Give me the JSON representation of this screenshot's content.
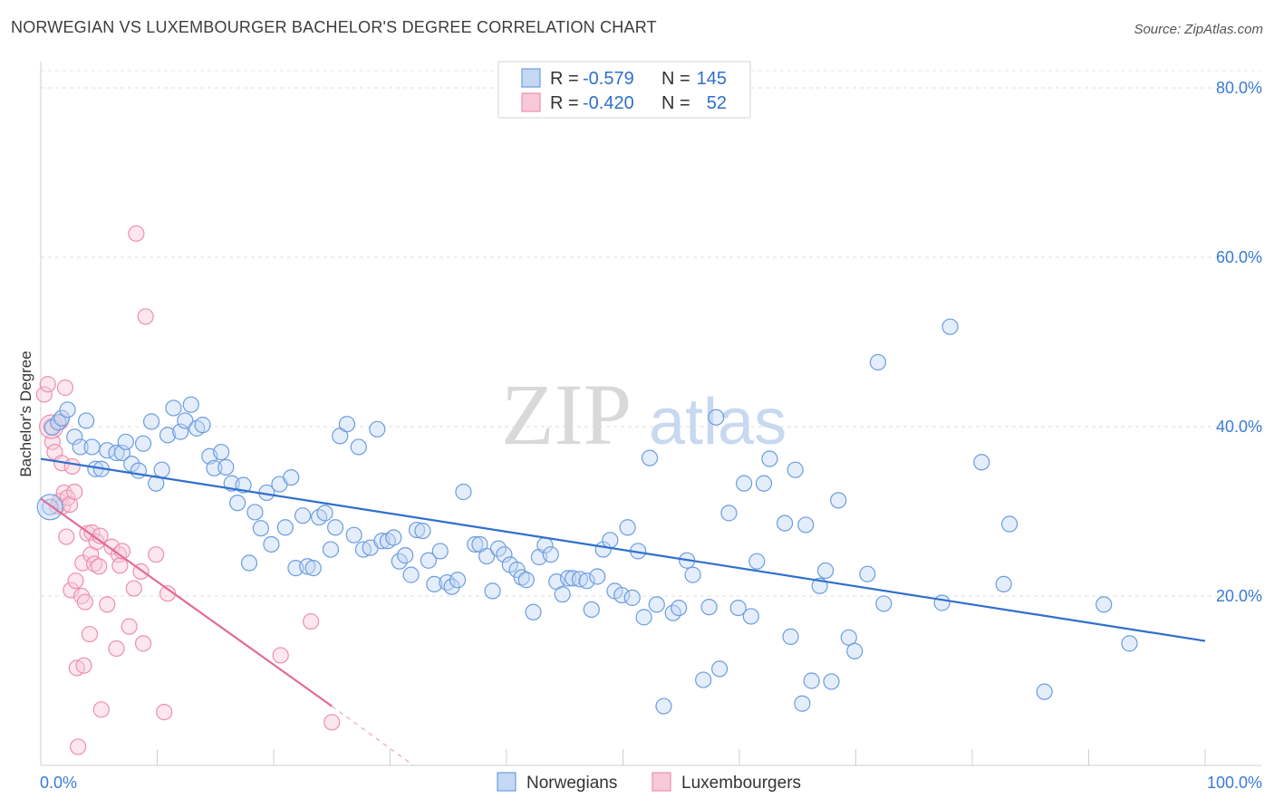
{
  "title": "NORWEGIAN VS LUXEMBOURGER BACHELOR'S DEGREE CORRELATION CHART",
  "source": "Source: ZipAtlas.com",
  "chart_data": {
    "type": "scatter",
    "title": "NORWEGIAN VS LUXEMBOURGER BACHELOR'S DEGREE CORRELATION CHART",
    "ylabel": "Bachelor's Degree",
    "xlabel": "",
    "xlim": [
      0,
      100
    ],
    "ylim": [
      0,
      80
    ],
    "x_tick_labels": [
      "0.0%",
      "100.0%"
    ],
    "y_ticks": [
      20,
      40,
      60,
      80
    ],
    "y_tick_labels": [
      "20.0%",
      "40.0%",
      "60.0%",
      "80.0%"
    ],
    "grid": "horizontal dashed",
    "legend_placement": "top-center",
    "watermark": {
      "zip": "ZIP",
      "atlas": "atlas"
    },
    "stats": [
      {
        "r_label": "R =",
        "r": "-0.579",
        "n_label": "N =",
        "n": "145"
      },
      {
        "r_label": "R =",
        "r": "-0.420",
        "n_label": "N =",
        "n": "52"
      }
    ],
    "series": [
      {
        "name": "Norwegians",
        "color": "#6b9de0",
        "fill": "#c4d8f3",
        "trend": {
          "x": [
            0,
            100
          ],
          "y": [
            36.2,
            14.7
          ],
          "style": "solid"
        },
        "points": [
          [
            0.8,
            30.5
          ],
          [
            1.0,
            39.9
          ],
          [
            1.5,
            40.5
          ],
          [
            1.8,
            41.0
          ],
          [
            2.3,
            42.0
          ],
          [
            2.9,
            38.8
          ],
          [
            3.4,
            37.6
          ],
          [
            3.9,
            40.7
          ],
          [
            4.4,
            37.6
          ],
          [
            4.7,
            35.0
          ],
          [
            5.2,
            35.0
          ],
          [
            5.7,
            37.2
          ],
          [
            6.5,
            36.9
          ],
          [
            7.0,
            36.9
          ],
          [
            7.3,
            38.2
          ],
          [
            7.8,
            35.6
          ],
          [
            8.4,
            34.8
          ],
          [
            8.8,
            38.0
          ],
          [
            9.5,
            40.6
          ],
          [
            9.9,
            33.3
          ],
          [
            10.4,
            34.9
          ],
          [
            10.9,
            39.0
          ],
          [
            11.4,
            42.2
          ],
          [
            12.0,
            39.4
          ],
          [
            12.4,
            40.7
          ],
          [
            12.9,
            42.6
          ],
          [
            13.4,
            39.8
          ],
          [
            13.9,
            40.2
          ],
          [
            14.5,
            36.5
          ],
          [
            14.9,
            35.1
          ],
          [
            15.5,
            37.0
          ],
          [
            15.9,
            35.2
          ],
          [
            16.4,
            33.3
          ],
          [
            16.9,
            31.0
          ],
          [
            17.4,
            33.1
          ],
          [
            17.9,
            23.9
          ],
          [
            18.4,
            29.9
          ],
          [
            18.9,
            28.0
          ],
          [
            19.4,
            32.2
          ],
          [
            19.8,
            26.1
          ],
          [
            20.5,
            33.2
          ],
          [
            21.0,
            28.1
          ],
          [
            21.5,
            34.0
          ],
          [
            21.9,
            23.3
          ],
          [
            22.5,
            29.5
          ],
          [
            22.9,
            23.5
          ],
          [
            23.4,
            23.3
          ],
          [
            23.9,
            29.3
          ],
          [
            24.4,
            29.8
          ],
          [
            24.9,
            25.5
          ],
          [
            25.3,
            28.1
          ],
          [
            25.7,
            38.9
          ],
          [
            26.3,
            40.3
          ],
          [
            26.9,
            27.2
          ],
          [
            27.3,
            37.6
          ],
          [
            27.7,
            25.5
          ],
          [
            28.3,
            25.7
          ],
          [
            28.9,
            39.7
          ],
          [
            29.3,
            26.5
          ],
          [
            29.8,
            26.5
          ],
          [
            30.3,
            26.9
          ],
          [
            30.8,
            24.1
          ],
          [
            31.3,
            24.8
          ],
          [
            31.8,
            22.5
          ],
          [
            32.3,
            27.8
          ],
          [
            32.8,
            27.7
          ],
          [
            33.3,
            24.2
          ],
          [
            33.8,
            21.4
          ],
          [
            34.3,
            25.3
          ],
          [
            34.9,
            21.6
          ],
          [
            35.3,
            21.1
          ],
          [
            35.8,
            21.9
          ],
          [
            36.3,
            32.3
          ],
          [
            37.3,
            26.1
          ],
          [
            37.7,
            26.1
          ],
          [
            38.3,
            24.7
          ],
          [
            38.8,
            20.6
          ],
          [
            39.3,
            25.6
          ],
          [
            39.8,
            24.9
          ],
          [
            40.3,
            23.7
          ],
          [
            40.9,
            23.1
          ],
          [
            41.3,
            22.2
          ],
          [
            41.7,
            21.9
          ],
          [
            42.3,
            18.1
          ],
          [
            42.8,
            24.6
          ],
          [
            43.3,
            26.0
          ],
          [
            43.8,
            24.9
          ],
          [
            44.3,
            21.7
          ],
          [
            44.8,
            20.2
          ],
          [
            45.3,
            22.1
          ],
          [
            45.7,
            22.1
          ],
          [
            46.3,
            22.0
          ],
          [
            46.9,
            21.8
          ],
          [
            47.3,
            18.4
          ],
          [
            47.8,
            22.3
          ],
          [
            48.3,
            25.5
          ],
          [
            48.9,
            26.6
          ],
          [
            49.3,
            20.6
          ],
          [
            49.9,
            20.1
          ],
          [
            50.4,
            28.1
          ],
          [
            50.8,
            19.8
          ],
          [
            51.3,
            25.3
          ],
          [
            51.8,
            17.5
          ],
          [
            52.3,
            36.3
          ],
          [
            52.9,
            19.0
          ],
          [
            53.5,
            7.0
          ],
          [
            54.3,
            18.0
          ],
          [
            54.8,
            18.6
          ],
          [
            55.5,
            24.2
          ],
          [
            56.0,
            22.5
          ],
          [
            56.9,
            10.1
          ],
          [
            57.4,
            18.7
          ],
          [
            58.0,
            41.1
          ],
          [
            58.3,
            11.4
          ],
          [
            59.1,
            29.8
          ],
          [
            59.9,
            18.6
          ],
          [
            60.4,
            33.3
          ],
          [
            61.0,
            17.6
          ],
          [
            61.5,
            24.1
          ],
          [
            62.1,
            33.3
          ],
          [
            62.6,
            36.2
          ],
          [
            63.9,
            28.6
          ],
          [
            64.4,
            15.2
          ],
          [
            64.8,
            34.9
          ],
          [
            65.4,
            7.3
          ],
          [
            65.7,
            28.4
          ],
          [
            66.2,
            10.0
          ],
          [
            66.9,
            21.2
          ],
          [
            67.4,
            23.0
          ],
          [
            67.9,
            9.9
          ],
          [
            68.5,
            31.3
          ],
          [
            69.4,
            15.1
          ],
          [
            69.9,
            13.5
          ],
          [
            71.0,
            22.6
          ],
          [
            71.9,
            47.6
          ],
          [
            72.4,
            19.1
          ],
          [
            77.4,
            19.2
          ],
          [
            78.1,
            51.8
          ],
          [
            80.8,
            35.8
          ],
          [
            83.2,
            28.5
          ],
          [
            82.7,
            21.4
          ],
          [
            86.2,
            8.7
          ],
          [
            91.3,
            19.0
          ],
          [
            93.5,
            14.4
          ]
        ]
      },
      {
        "name": "Luxembourgers",
        "color": "#ee8faf",
        "fill": "#f7c9d8",
        "trend": {
          "x": [
            0,
            25
          ],
          "y": [
            31.5,
            7.0
          ],
          "dash_to": [
            32,
            0
          ],
          "style": "solid-then-dashed"
        },
        "points": [
          [
            0.3,
            43.8
          ],
          [
            0.6,
            45.0
          ],
          [
            0.9,
            40.0
          ],
          [
            1.0,
            38.2
          ],
          [
            1.2,
            37.0
          ],
          [
            1.4,
            30.6
          ],
          [
            1.6,
            31.2
          ],
          [
            1.7,
            40.6
          ],
          [
            1.8,
            35.7
          ],
          [
            1.9,
            30.6
          ],
          [
            2.0,
            32.2
          ],
          [
            2.1,
            44.6
          ],
          [
            2.2,
            27.0
          ],
          [
            2.3,
            31.6
          ],
          [
            2.5,
            30.8
          ],
          [
            2.6,
            20.7
          ],
          [
            2.7,
            35.3
          ],
          [
            2.9,
            32.3
          ],
          [
            3.0,
            21.8
          ],
          [
            3.1,
            11.5
          ],
          [
            3.2,
            2.2
          ],
          [
            3.5,
            20.0
          ],
          [
            3.6,
            23.9
          ],
          [
            3.7,
            11.8
          ],
          [
            3.8,
            19.3
          ],
          [
            4.0,
            27.4
          ],
          [
            4.2,
            15.5
          ],
          [
            4.3,
            24.9
          ],
          [
            4.4,
            27.5
          ],
          [
            4.6,
            23.8
          ],
          [
            4.8,
            26.4
          ],
          [
            5.0,
            23.5
          ],
          [
            5.1,
            27.1
          ],
          [
            5.2,
            6.6
          ],
          [
            5.7,
            19.0
          ],
          [
            6.1,
            25.8
          ],
          [
            6.5,
            13.8
          ],
          [
            6.7,
            24.9
          ],
          [
            6.8,
            23.6
          ],
          [
            7.0,
            25.3
          ],
          [
            7.6,
            16.4
          ],
          [
            8.0,
            20.9
          ],
          [
            8.2,
            62.8
          ],
          [
            8.6,
            22.9
          ],
          [
            8.8,
            14.4
          ],
          [
            9.0,
            53.0
          ],
          [
            9.9,
            24.9
          ],
          [
            10.6,
            6.3
          ],
          [
            10.9,
            20.3
          ],
          [
            20.6,
            13.0
          ],
          [
            23.2,
            17.0
          ],
          [
            25.0,
            5.1
          ]
        ]
      }
    ]
  }
}
